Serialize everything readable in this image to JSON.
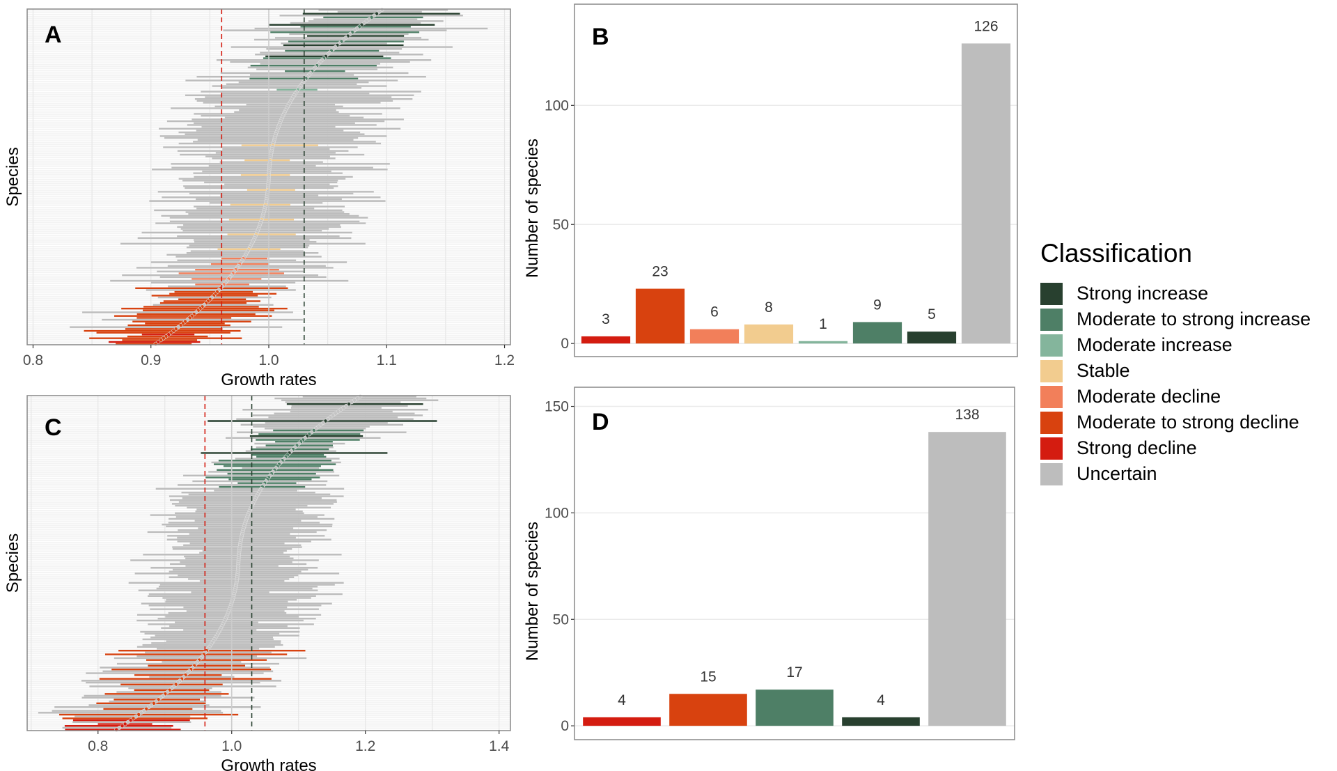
{
  "legend": {
    "title": "Classification",
    "items": [
      {
        "label": "Strong increase",
        "color": "#28402f"
      },
      {
        "label": "Moderate to strong increase",
        "color": "#4e7f66"
      },
      {
        "label": "Moderate increase",
        "color": "#84b59c"
      },
      {
        "label": "Stable",
        "color": "#f2cc8f"
      },
      {
        "label": "Moderate decline",
        "color": "#f27f5a"
      },
      {
        "label": "Moderate to strong decline",
        "color": "#d8420f"
      },
      {
        "label": "Strong decline",
        "color": "#d41c10"
      },
      {
        "label": "Uncertain",
        "color": "#bdbdbd"
      }
    ]
  },
  "chart_data": [
    {
      "panel": "A",
      "type": "scatter",
      "subtype": "forest/interval plot (point estimate with confidence interval per species, sorted)",
      "xlabel": "Growth rates",
      "ylabel": "Species",
      "xlim": [
        0.795,
        1.205
      ],
      "xticks": [
        "0.8",
        "0.9",
        "1.0",
        "1.1",
        "1.2"
      ],
      "xtick_values": [
        0.8,
        0.9,
        1.0,
        1.1,
        1.2
      ],
      "reference_lines": [
        {
          "x": 0.96,
          "color": "#d41c10",
          "style": "dashed"
        },
        {
          "x": 1.0,
          "color": "#cccccc",
          "style": "solid"
        },
        {
          "x": 1.03,
          "color": "#28402f",
          "style": "dashed"
        }
      ],
      "n_species": 181,
      "estimate_range": [
        0.9,
        1.1
      ],
      "groups_top_to_bottom": [
        {
          "class": "Strong increase",
          "count": 5,
          "center": [
            1.1,
            1.05
          ],
          "halfwidth": 0.05
        },
        {
          "class": "Moderate to strong increase",
          "count": 9,
          "center": [
            1.085,
            1.035
          ],
          "halfwidth": 0.045
        },
        {
          "class": "Moderate increase",
          "count": 1,
          "center": [
            1.025,
            1.025
          ],
          "halfwidth": 0.025
        },
        {
          "class": "Stable",
          "count": 8,
          "center": [
            1.0,
            0.985
          ],
          "halfwidth": 0.028
        },
        {
          "class": "Moderate decline",
          "count": 6,
          "center": [
            0.975,
            0.965
          ],
          "halfwidth": 0.03
        },
        {
          "class": "Moderate to strong decline",
          "count": 23,
          "center": [
            0.955,
            0.905
          ],
          "halfwidth": 0.05
        },
        {
          "class": "Strong decline",
          "count": 3,
          "center": [
            0.915,
            0.91
          ],
          "halfwidth": 0.03
        },
        {
          "class": "Uncertain",
          "count": 126,
          "center": [
            1.08,
            0.92
          ],
          "halfwidth": 0.07
        }
      ]
    },
    {
      "panel": "B",
      "type": "bar",
      "categories": [
        "Strong decline",
        "Moderate to strong decline",
        "Moderate decline",
        "Stable",
        "Moderate increase",
        "Moderate to strong increase",
        "Strong increase",
        "Uncertain"
      ],
      "values": [
        3,
        23,
        6,
        8,
        1,
        9,
        5,
        126
      ],
      "colors": [
        "#d41c10",
        "#d8420f",
        "#f27f5a",
        "#f2cc8f",
        "#84b59c",
        "#4e7f66",
        "#28402f",
        "#bdbdbd"
      ],
      "xlabel": "",
      "ylabel": "Number of species",
      "ylim": [
        -5.5,
        142.5
      ],
      "yticks": [
        "0",
        "50",
        "100"
      ],
      "ytick_values": [
        0,
        50,
        100
      ],
      "grid": true
    },
    {
      "panel": "C",
      "type": "scatter",
      "subtype": "forest/interval plot (point estimate with confidence interval per species, sorted)",
      "xlabel": "Growth rates",
      "ylabel": "Species",
      "xlim": [
        0.694,
        1.417
      ],
      "xticks": [
        "0.8",
        "1.0",
        "1.2",
        "1.4"
      ],
      "xtick_values": [
        0.8,
        1.0,
        1.2,
        1.4
      ],
      "reference_lines": [
        {
          "x": 0.96,
          "color": "#d41c10",
          "style": "dashed"
        },
        {
          "x": 1.0,
          "color": "#cccccc",
          "style": "solid"
        },
        {
          "x": 1.03,
          "color": "#28402f",
          "style": "dashed"
        }
      ],
      "n_species": 178,
      "estimate_range": [
        0.82,
        1.2
      ],
      "groups_top_to_bottom": [
        {
          "class": "Strong increase",
          "count": 4,
          "center": [
            1.2,
            1.08
          ],
          "halfwidth": 0.14
        },
        {
          "class": "Moderate to strong increase",
          "count": 17,
          "center": [
            1.12,
            1.05
          ],
          "halfwidth": 0.07
        },
        {
          "class": "Moderate to strong decline",
          "count": 15,
          "center": [
            0.96,
            0.85
          ],
          "halfwidth": 0.1
        },
        {
          "class": "Strong decline",
          "count": 4,
          "center": [
            0.85,
            0.83
          ],
          "halfwidth": 0.06
        },
        {
          "class": "Uncertain",
          "count": 138,
          "center": [
            1.15,
            0.85
          ],
          "halfwidth": 0.1
        }
      ]
    },
    {
      "panel": "D",
      "type": "bar",
      "categories": [
        "Strong decline",
        "Moderate to strong decline",
        "Moderate to strong increase",
        "Strong increase",
        "Uncertain"
      ],
      "values": [
        4,
        15,
        17,
        4,
        138
      ],
      "colors": [
        "#d41c10",
        "#d8420f",
        "#4e7f66",
        "#28402f",
        "#bdbdbd"
      ],
      "xlabel": "",
      "ylabel": "Number of species",
      "ylim": [
        -6.5,
        159
      ],
      "yticks": [
        "0",
        "50",
        "100",
        "150"
      ],
      "ytick_values": [
        0,
        50,
        100,
        150
      ],
      "grid": true
    }
  ]
}
